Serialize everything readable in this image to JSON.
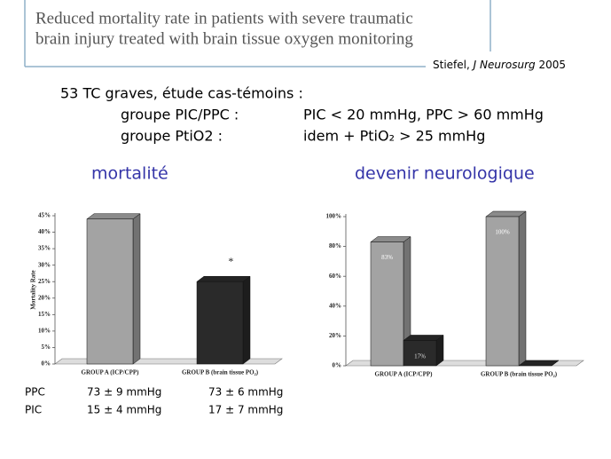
{
  "title": [
    "Reduced mortality rate in patients with severe traumatic",
    "brain injury treated with brain tissue oxygen monitoring"
  ],
  "citation": {
    "author": "Stiefel,",
    "journal": "J Neurosurg",
    "year": "2005"
  },
  "intro": {
    "heading": "53 TC graves, étude cas-témoins :",
    "rows": [
      [
        "groupe PIC/PPC :",
        "PIC < 20 mmHg, PPC > 60 mmHg"
      ],
      [
        "groupe PtiO2 :",
        "idem  + PtiO₂ > 25 mmHg"
      ]
    ]
  },
  "chart_titles": [
    "mortalité",
    "devenir neurologique"
  ],
  "table": {
    "rows": [
      [
        "PPC",
        "73 ± 9 mmHg",
        "73 ± 6 mmHg"
      ],
      [
        "PIC",
        "15 ± 4 mmHg",
        "17 ± 7 mmHg"
      ]
    ]
  },
  "chart_data": [
    {
      "type": "bar",
      "ylabel": "Mortality Rate",
      "categories": [
        "GROUP A (ICP/CPP)",
        "GROUP B (brain tissue PO₂)"
      ],
      "series": [
        {
          "values": [
            44,
            25
          ],
          "colors": [
            "#a3a3a3",
            "#2a2a2a"
          ]
        }
      ],
      "ylim": [
        0,
        45
      ],
      "yticks": [
        {
          "value": 0,
          "label": "0%"
        },
        {
          "value": 5,
          "label": "5%"
        },
        {
          "value": 10,
          "label": "10%"
        },
        {
          "value": 15,
          "label": "15%"
        },
        {
          "value": 20,
          "label": "20%"
        },
        {
          "value": 25,
          "label": "25%"
        },
        {
          "value": 30,
          "label": "30%"
        },
        {
          "value": 35,
          "label": "35%"
        },
        {
          "value": 40,
          "label": "40%"
        },
        {
          "value": 45,
          "label": "45%"
        }
      ],
      "annotation": "*"
    },
    {
      "type": "bar",
      "categories": [
        "GROUP A (ICP/CPP)",
        "GROUP B (brain tissue PO₂)"
      ],
      "series": [
        {
          "color": "#a3a3a3",
          "values": [
            83,
            100
          ],
          "value_labels": [
            "83%",
            "100%"
          ]
        },
        {
          "color": "#2a2a2a",
          "values": [
            17,
            0
          ],
          "value_labels": [
            "17%",
            null
          ]
        }
      ],
      "ylim": [
        0,
        100
      ],
      "yticks": [
        {
          "value": 0,
          "label": "0%"
        },
        {
          "value": 20,
          "label": "20%"
        },
        {
          "value": 40,
          "label": "40%"
        },
        {
          "value": 60,
          "label": "60%"
        },
        {
          "value": 80,
          "label": "80%"
        },
        {
          "value": 100,
          "label": "100%"
        }
      ]
    }
  ]
}
